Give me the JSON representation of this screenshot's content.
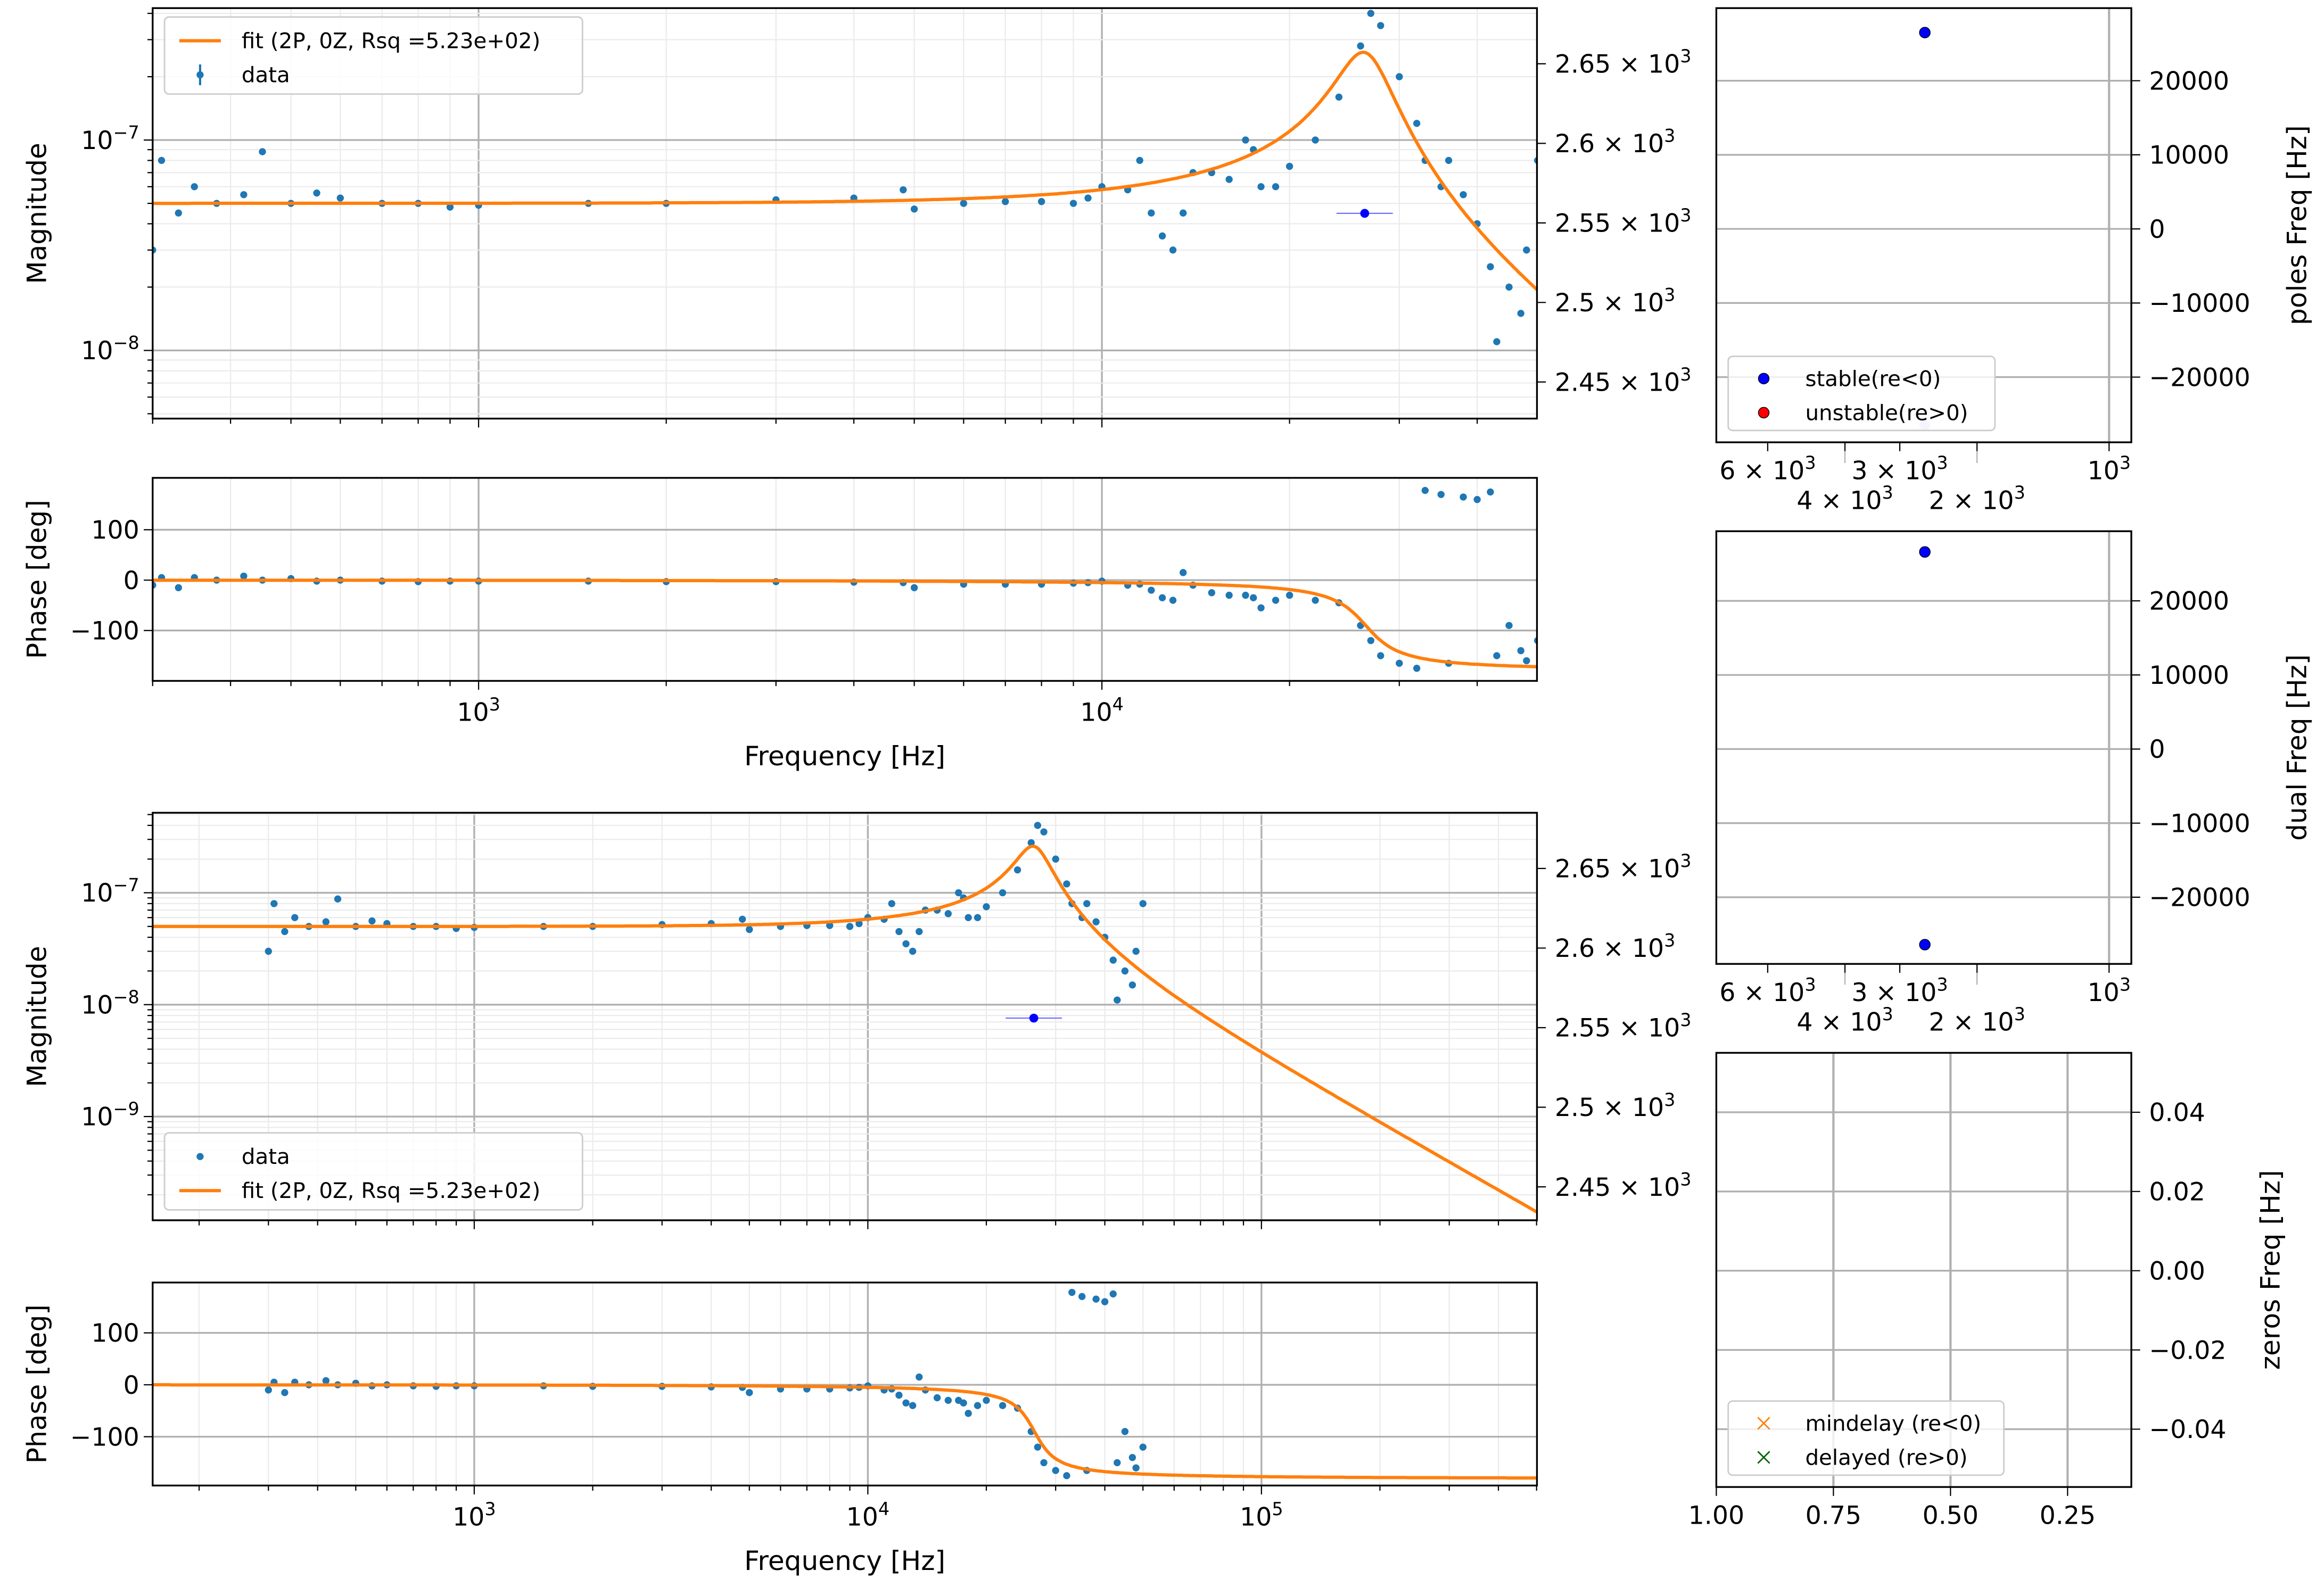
{
  "chart_data": [
    {
      "type": "scatter",
      "id": "bode-top",
      "description_title": "",
      "xlabel": "Frequency [Hz]",
      "magnitude_ylabel": "Magnitude",
      "phase_ylabel": "Phase [deg]",
      "xlim": [
        300,
        50000
      ],
      "mag_ylim": [
        4.2e-09,
        4.2e-07
      ],
      "phase_ylim": [
        -200,
        203
      ],
      "right_ylim": [
        2427,
        2685
      ],
      "xticks": [
        {
          "v": 1000,
          "t": "10",
          "s": "3"
        },
        {
          "v": 10000,
          "t": "10",
          "s": "4"
        }
      ],
      "mag_yticks": [
        {
          "v": 1e-07,
          "t": "10",
          "s": "−7"
        },
        {
          "v": 1e-08,
          "t": "10",
          "s": "−8"
        }
      ],
      "phase_yticks": [
        {
          "v": 100,
          "t": "100"
        },
        {
          "v": 0,
          "t": "0"
        },
        {
          "v": -100,
          "t": "−100"
        }
      ],
      "right_yticks": [
        {
          "v": 2450,
          "t": "2.45 × 10",
          "s": "3"
        },
        {
          "v": 2500,
          "t": "2.5 × 10",
          "s": "3"
        },
        {
          "v": 2550,
          "t": "2.55 × 10",
          "s": "3"
        },
        {
          "v": 2600,
          "t": "2.6 × 10",
          "s": "3"
        },
        {
          "v": 2650,
          "t": "2.65 × 10",
          "s": "3"
        }
      ],
      "legend": {
        "position": "top-left",
        "fit": "fit (2P, 0Z, Rsq =5.23e+02)",
        "data": "data"
      },
      "grid": true
    },
    {
      "type": "scatter",
      "id": "bode-bottom",
      "xlabel": "Frequency [Hz]",
      "magnitude_ylabel": "Magnitude",
      "phase_ylabel": "Phase [deg]",
      "xlim": [
        152,
        500000
      ],
      "mag_ylim": [
        1.2e-10,
        5.2e-07
      ],
      "phase_ylim": [
        -194,
        197
      ],
      "right_ylim": [
        2429,
        2685
      ],
      "xticks": [
        {
          "v": 1000,
          "t": "10",
          "s": "3"
        },
        {
          "v": 10000,
          "t": "10",
          "s": "4"
        },
        {
          "v": 100000,
          "t": "10",
          "s": "5"
        }
      ],
      "mag_yticks": [
        {
          "v": 1e-07,
          "t": "10",
          "s": "−7"
        },
        {
          "v": 1e-08,
          "t": "10",
          "s": "−8"
        },
        {
          "v": 1e-09,
          "t": "10",
          "s": "−9"
        }
      ],
      "phase_yticks": [
        {
          "v": 100,
          "t": "100"
        },
        {
          "v": 0,
          "t": "0"
        },
        {
          "v": -100,
          "t": "−100"
        }
      ],
      "right_yticks": [
        {
          "v": 2450,
          "t": "2.45 × 10",
          "s": "3"
        },
        {
          "v": 2500,
          "t": "2.5 × 10",
          "s": "3"
        },
        {
          "v": 2550,
          "t": "2.55 × 10",
          "s": "3"
        },
        {
          "v": 2600,
          "t": "2.6 × 10",
          "s": "3"
        },
        {
          "v": 2650,
          "t": "2.65 × 10",
          "s": "3"
        }
      ],
      "legend": {
        "position": "bottom-left",
        "data": "data",
        "fit": "fit (2P, 0Z, Rsq =5.23e+02)"
      },
      "grid": true
    },
    {
      "type": "scatter",
      "id": "poles",
      "ylabel": "poles Freq [Hz]",
      "ylim": [
        -28800,
        29800
      ],
      "xscale": "log-reversed",
      "xticks": [
        {
          "v": 6000,
          "t": "6 × 10",
          "s": "3"
        },
        {
          "v": 4000,
          "t": "4 × 10",
          "s": "3"
        },
        {
          "v": 3000,
          "t": "3 × 10",
          "s": "3"
        },
        {
          "v": 2000,
          "t": "2 × 10",
          "s": "3"
        },
        {
          "v": 1000,
          "t": "10",
          "s": "3"
        }
      ],
      "yticks": [
        {
          "v": 20000,
          "t": "20000"
        },
        {
          "v": 10000,
          "t": "10000"
        },
        {
          "v": 0,
          "t": "0"
        },
        {
          "v": -10000,
          "t": "−10000"
        },
        {
          "v": -20000,
          "t": "−20000"
        }
      ],
      "points": [
        {
          "x": 2630,
          "y": 26500,
          "kind": "stable"
        },
        {
          "x": 2630,
          "y": -26500,
          "kind": "faded"
        }
      ],
      "legend": {
        "position": "bottom-left",
        "stable": "stable(re<0)",
        "unstable": "unstable(re>0)"
      }
    },
    {
      "type": "scatter",
      "id": "dual",
      "ylabel": "dual Freq [Hz]",
      "ylim": [
        -29000,
        29400
      ],
      "xscale": "log-reversed",
      "xticks": [
        {
          "v": 6000,
          "t": "6 × 10",
          "s": "3"
        },
        {
          "v": 4000,
          "t": "4 × 10",
          "s": "3"
        },
        {
          "v": 3000,
          "t": "3 × 10",
          "s": "3"
        },
        {
          "v": 2000,
          "t": "2 × 10",
          "s": "3"
        },
        {
          "v": 1000,
          "t": "10",
          "s": "3"
        }
      ],
      "yticks": [
        {
          "v": 20000,
          "t": "20000"
        },
        {
          "v": 10000,
          "t": "10000"
        },
        {
          "v": 0,
          "t": "0"
        },
        {
          "v": -10000,
          "t": "−10000"
        },
        {
          "v": -20000,
          "t": "−20000"
        }
      ],
      "points": [
        {
          "x": 2630,
          "y": 26600
        },
        {
          "x": 2630,
          "y": -26400
        }
      ]
    },
    {
      "type": "scatter",
      "id": "zeros",
      "ylabel": "zeros Freq [Hz]",
      "xlim": [
        1.0,
        0.114
      ],
      "ylim": [
        -0.0546,
        0.055
      ],
      "xticks": [
        {
          "v": 1.0,
          "t": "1.00"
        },
        {
          "v": 0.75,
          "t": "0.75"
        },
        {
          "v": 0.5,
          "t": "0.50"
        },
        {
          "v": 0.25,
          "t": "0.25"
        }
      ],
      "yticks": [
        {
          "v": 0.04,
          "t": "0.04"
        },
        {
          "v": 0.02,
          "t": "0.02"
        },
        {
          "v": 0,
          "t": "0.00"
        },
        {
          "v": -0.02,
          "t": "−0.02"
        },
        {
          "v": -0.04,
          "t": "−0.04"
        }
      ],
      "points": [],
      "legend": {
        "position": "bottom-left",
        "mindelay": "mindelay (re<0)",
        "delayed": "delayed (re>0)"
      }
    }
  ],
  "fit": {
    "poles": 2,
    "zeros": 0,
    "f0_hz": 26500,
    "Q": 5.2,
    "dc_gain": 5e-08
  },
  "resonance_marker": {
    "freq_hz": 26400,
    "value": 2556
  },
  "data_points": [
    [
      300,
      3e-08,
      -10
    ],
    [
      310,
      8e-08,
      5
    ],
    [
      330,
      4.5e-08,
      -15
    ],
    [
      350,
      6e-08,
      5
    ],
    [
      380,
      5e-08,
      0
    ],
    [
      420,
      5.5e-08,
      8
    ],
    [
      450,
      8.8e-08,
      0
    ],
    [
      500,
      5e-08,
      3
    ],
    [
      550,
      5.6e-08,
      -2
    ],
    [
      600,
      5.3e-08,
      0
    ],
    [
      700,
      5e-08,
      -2
    ],
    [
      800,
      5e-08,
      -3
    ],
    [
      900,
      4.8e-08,
      -2
    ],
    [
      1000,
      4.9e-08,
      -2
    ],
    [
      1500,
      5e-08,
      -2
    ],
    [
      2000,
      5e-08,
      -3
    ],
    [
      3000,
      5.2e-08,
      -3
    ],
    [
      4000,
      5.3e-08,
      -4
    ],
    [
      4800,
      5.8e-08,
      -5
    ],
    [
      5000,
      4.7e-08,
      -15
    ],
    [
      6000,
      5e-08,
      -8
    ],
    [
      7000,
      5.1e-08,
      -8
    ],
    [
      8000,
      5.1e-08,
      -8
    ],
    [
      9000,
      5e-08,
      -6
    ],
    [
      9500,
      5.3e-08,
      -5
    ],
    [
      10000,
      6e-08,
      -2
    ],
    [
      11000,
      5.8e-08,
      -10
    ],
    [
      11500,
      8e-08,
      -8
    ],
    [
      12000,
      4.5e-08,
      -20
    ],
    [
      12500,
      3.5e-08,
      -35
    ],
    [
      13000,
      3e-08,
      -40
    ],
    [
      13500,
      4.5e-08,
      15
    ],
    [
      14000,
      7e-08,
      -10
    ],
    [
      15000,
      7e-08,
      -25
    ],
    [
      16000,
      6.5e-08,
      -30
    ],
    [
      17000,
      1e-07,
      -30
    ],
    [
      17500,
      9e-08,
      -35
    ],
    [
      18000,
      6e-08,
      -55
    ],
    [
      19000,
      6e-08,
      -40
    ],
    [
      20000,
      7.5e-08,
      -30
    ],
    [
      22000,
      1e-07,
      -40
    ],
    [
      24000,
      1.6e-07,
      -45
    ],
    [
      26000,
      2.8e-07,
      -90
    ],
    [
      27000,
      4e-07,
      -120
    ],
    [
      28000,
      3.5e-07,
      -150
    ],
    [
      30000,
      2e-07,
      -165
    ],
    [
      32000,
      1.2e-07,
      -175
    ],
    [
      33000,
      8e-08,
      178
    ],
    [
      35000,
      6e-08,
      170
    ],
    [
      36000,
      8e-08,
      -165
    ],
    [
      38000,
      5.5e-08,
      165
    ],
    [
      40000,
      4e-08,
      160
    ],
    [
      42000,
      2.5e-08,
      175
    ],
    [
      43000,
      1.1e-08,
      -150
    ],
    [
      45000,
      2e-08,
      -90
    ],
    [
      47000,
      1.5e-08,
      -140
    ],
    [
      48000,
      3e-08,
      -160
    ],
    [
      50000,
      8e-08,
      -120
    ]
  ],
  "colors": {
    "data": "#1f77b4",
    "fit": "#ff7f0e",
    "stable": "#0000ff",
    "unstable": "#ff0000",
    "faded": "#c8c8f0",
    "mindelay": "#ff7f0e",
    "delayed": "#006400",
    "major_grid": "#b0b0b0",
    "minor_grid": "#ebebeb"
  }
}
